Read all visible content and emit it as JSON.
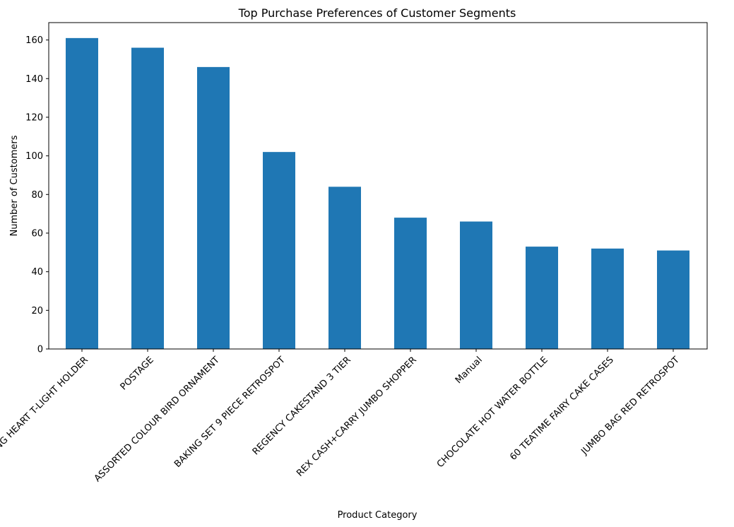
{
  "chart_data": {
    "type": "bar",
    "title": "Top Purchase Preferences of Customer Segments",
    "xlabel": "Product Category",
    "ylabel": "Number of Customers",
    "categories": [
      "WHITE HANGING HEART T-LIGHT HOLDER",
      "POSTAGE",
      "ASSORTED COLOUR BIRD ORNAMENT",
      "BAKING SET 9 PIECE RETROSPOT",
      "REGENCY CAKESTAND 3 TIER",
      "REX CASH+CARRY JUMBO SHOPPER",
      "Manual",
      "CHOCOLATE HOT WATER BOTTLE",
      "60 TEATIME FAIRY CAKE CASES",
      "JUMBO BAG RED RETROSPOT"
    ],
    "values": [
      161,
      156,
      146,
      102,
      84,
      68,
      66,
      53,
      52,
      51
    ],
    "ylim": [
      0,
      169
    ],
    "yticks": [
      0,
      20,
      40,
      60,
      80,
      100,
      120,
      140,
      160
    ],
    "x_tick_rotation": 45,
    "grid": false,
    "color": "#1f77b4"
  }
}
